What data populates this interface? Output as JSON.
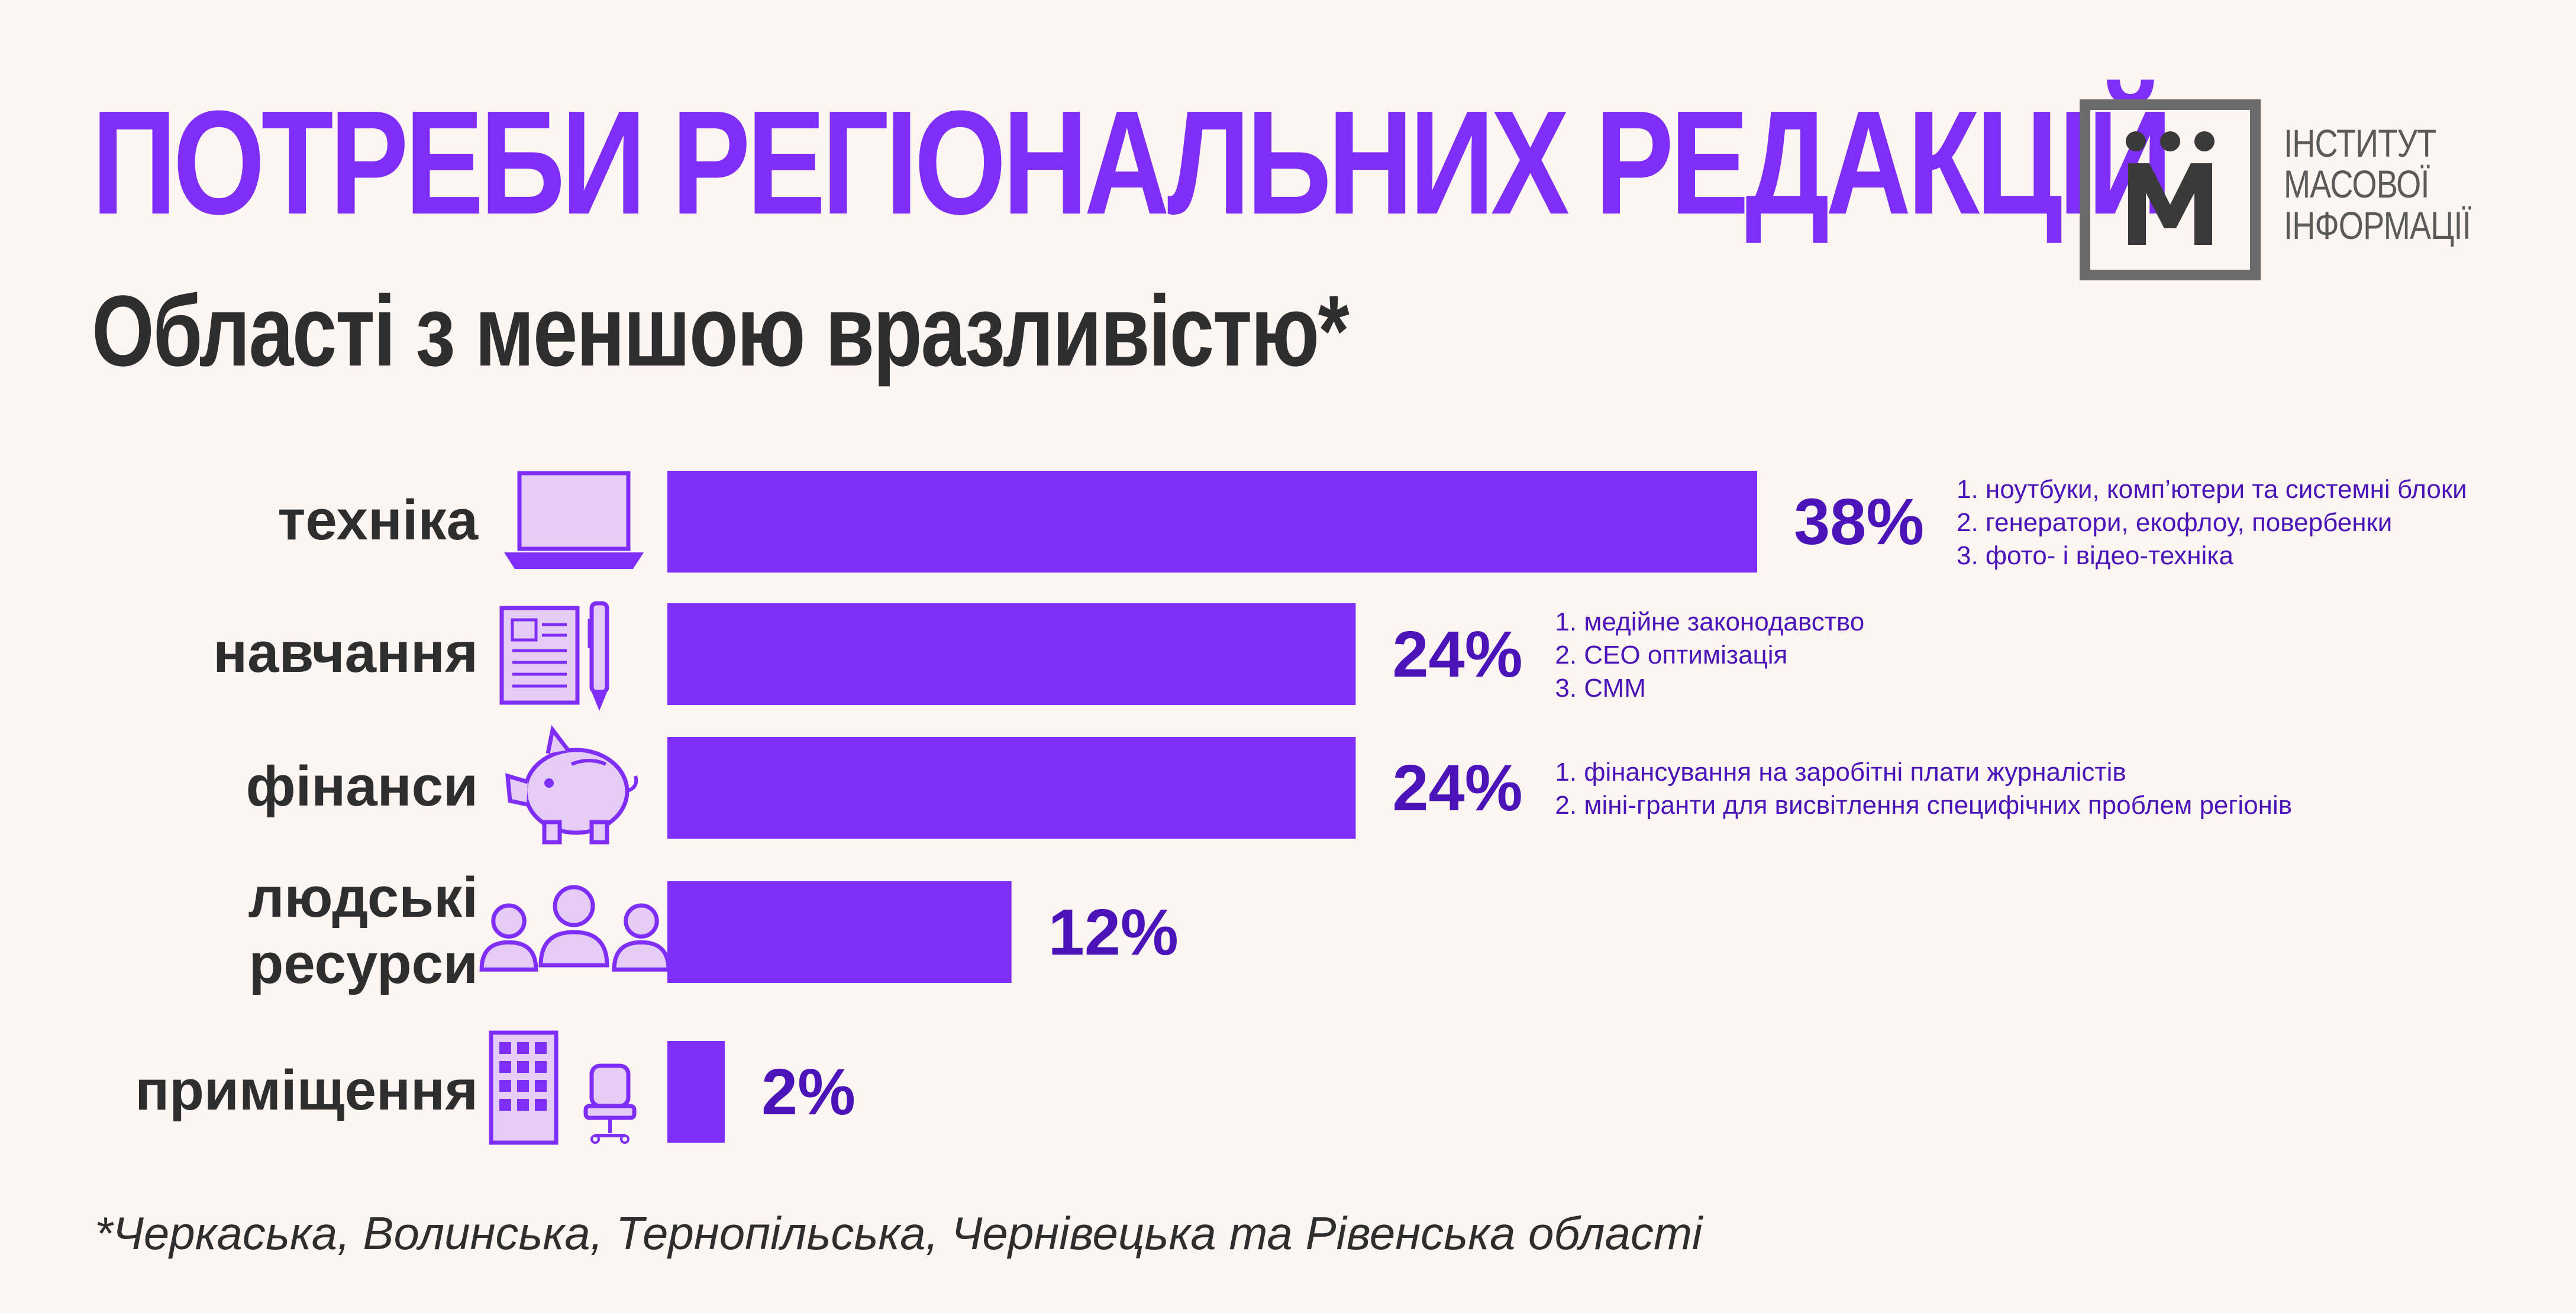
{
  "header": {
    "title": "ПОТРЕБИ РЕГІОНАЛЬНИХ РЕДАКЦІЙ",
    "subtitle": "Області з меншою вразливістю*"
  },
  "logo": {
    "mark": "М",
    "lines": [
      "ІНСТИТУТ",
      "МАСОВОЇ",
      "ІНФОРМАЦІЇ"
    ]
  },
  "colors": {
    "bar": "#7f2ef7",
    "value": "#4a14b8",
    "note": "#4a14b8",
    "category": "#2e2e2e",
    "icon_fill": "#e4ccf7",
    "icon_stroke": "#7f2ef7"
  },
  "chart_data": {
    "type": "bar",
    "orientation": "horizontal",
    "xlim": [
      0,
      38
    ],
    "categories": [
      [
        "техніка"
      ],
      [
        "навчання"
      ],
      [
        "фінанси"
      ],
      [
        "людські",
        "ресурси"
      ],
      [
        "приміщення"
      ]
    ],
    "values": [
      38,
      24,
      24,
      12,
      2
    ],
    "value_labels": [
      "38%",
      "24%",
      "24%",
      "12%",
      "2%"
    ],
    "icons": [
      "laptop-icon",
      "document-pen-icon",
      "piggy-bank-icon",
      "people-icon",
      "building-chair-icon"
    ],
    "annotations": [
      [
        "1. ноутбуки, комп’ютери та системні блоки",
        "2. генератори, екофлоу, повербенки",
        "3. фото- і відео-техніка"
      ],
      [
        "1. медійне законодавство",
        "2. СЕО оптимізація",
        "3. СММ"
      ],
      [
        "1. фінансування на заробітні плати журналістів",
        "2. міні-гранти для висвітлення специфічних проблем регіонів"
      ],
      [],
      []
    ]
  },
  "footnote": "*Черкаська, Волинська, Тернопільська, Чернівецька та Рівенська області"
}
